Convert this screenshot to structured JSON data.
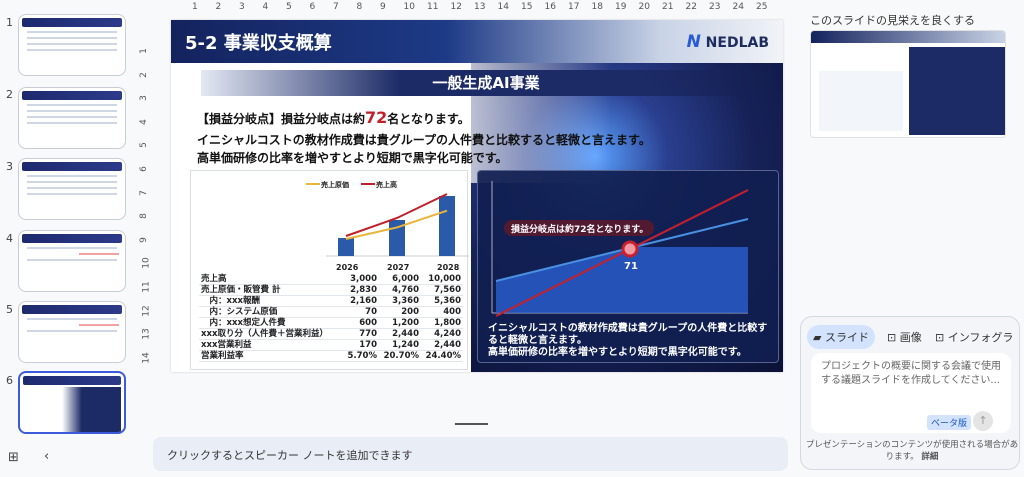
{
  "thumbnails": [
    {
      "num": "1"
    },
    {
      "num": "2"
    },
    {
      "num": "3"
    },
    {
      "num": "4"
    },
    {
      "num": "5"
    },
    {
      "num": "6",
      "selected": true
    }
  ],
  "ruler": {
    "h": [
      "1",
      "2",
      "3",
      "4",
      "5",
      "6",
      "7",
      "8",
      "9",
      "10",
      "11",
      "12",
      "13",
      "14",
      "15",
      "16",
      "17",
      "18",
      "19",
      "20",
      "21",
      "22",
      "23",
      "24",
      "25"
    ],
    "v": [
      "1",
      "2",
      "3",
      "4",
      "5",
      "6",
      "7",
      "8",
      "9",
      "10",
      "11",
      "12",
      "13",
      "14"
    ]
  },
  "slide": {
    "title": "5-2 事業収支概算",
    "logo": "NEDLAB",
    "band": "一般生成AI事業",
    "line1_pre": "【損益分岐点】損益分岐点は約",
    "line1_num": "72",
    "line1_post": "名となります。",
    "line2": "イニシャルコストの教材作成費は貴グループの人件費と比較すると軽微と言えます。",
    "line3": "高単価研修の比率を増やすとより短期で黒字化可能です。",
    "table": {
      "rows": [
        {
          "label": "売上高",
          "values": [
            "3,000",
            "6,000",
            "10,000"
          ]
        },
        {
          "label": "売上原価・販管費 計",
          "values": [
            "2,830",
            "4,760",
            "7,560"
          ]
        },
        {
          "label": "　内：xxx報酬",
          "values": [
            "2,160",
            "3,360",
            "5,360"
          ]
        },
        {
          "label": "　内：システム原価",
          "values": [
            "70",
            "200",
            "400"
          ]
        },
        {
          "label": "　内：xxx想定人件費",
          "values": [
            "600",
            "1,200",
            "1,800"
          ]
        },
        {
          "label": "xxx取り分（人件費＋営業利益）",
          "values": [
            "770",
            "2,440",
            "4,240"
          ]
        },
        {
          "label": "xxx営業利益",
          "values": [
            "170",
            "1,240",
            "2,440"
          ]
        },
        {
          "label": "営業利益率",
          "values": [
            "5.70%",
            "20.70%",
            "24.40%"
          ]
        }
      ]
    },
    "breakeven": {
      "callout": "損益分岐点は約72名となります。",
      "point_label": "71",
      "text1": "イニシャルコストの教材作成費は貴グループの人件費と比較すると軽微と言えます。",
      "text2": "高単価研修の比率を増やすとより短期で黒字化可能です。"
    }
  },
  "chart_data": {
    "type": "bar",
    "categories": [
      "2026",
      "2027",
      "2028"
    ],
    "series": [
      {
        "name": "売上高",
        "kind": "bar",
        "values": [
          3000,
          6000,
          10000
        ],
        "color": "#2a5aa8"
      },
      {
        "name": "売上原価",
        "kind": "line",
        "values": [
          2830,
          4760,
          7560
        ],
        "color": "#e8b53a"
      },
      {
        "name": "売上高",
        "kind": "line",
        "values": [
          3000,
          6000,
          10000
        ],
        "color": "#c0202a"
      }
    ],
    "legend": [
      "売上原価",
      "売上高"
    ],
    "legend_position": "top"
  },
  "notes": {
    "placeholder": "クリックするとスピーカー ノートを追加できます"
  },
  "right_panel": {
    "title": "このスライドの見栄えを良くする",
    "tabs": [
      "スライド",
      "画像",
      "インフォグラ"
    ],
    "prompt_placeholder": "プロジェクトの概要に関する会議で使用する議題スライドを作成してください...",
    "beta": "ベータ版",
    "disclaimer": "プレゼンテーションのコンテンツが使用される場合があります。",
    "details_link": "詳細"
  }
}
